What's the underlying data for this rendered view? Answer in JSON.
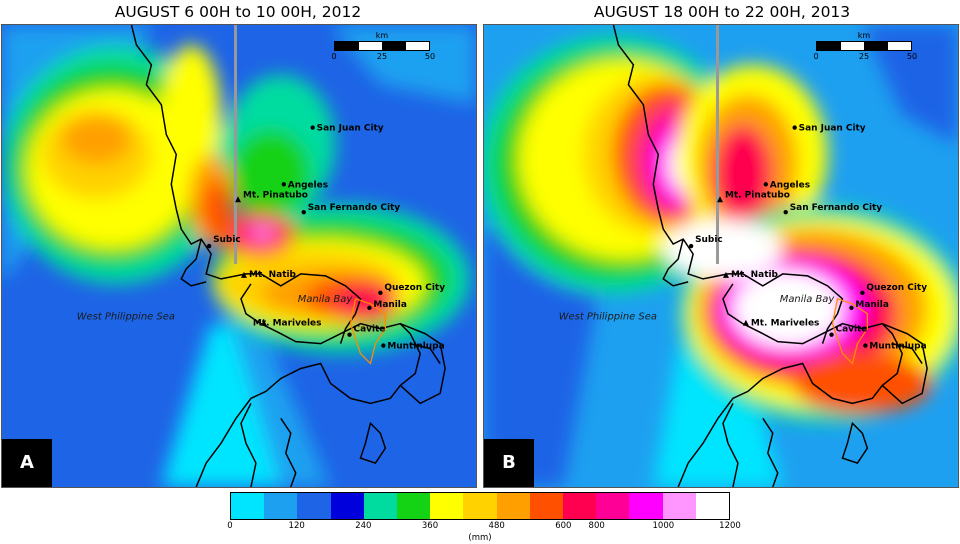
{
  "panels": [
    {
      "id": "A",
      "title": "AUGUST 6 00H to 10 00H, 2012",
      "label": "A",
      "places": [
        "San Juan City",
        "Angeles",
        "Mt. Pinatubo",
        "San Fernando City",
        "Subic",
        "Mt. Natib",
        "Quezon City",
        "Manila",
        "Mt. Mariveles",
        "Cavite",
        "Muntinlupa"
      ],
      "water": [
        "Manila Bay",
        "West Philippine Sea"
      ]
    },
    {
      "id": "B",
      "title": "AUGUST 18 00H to 22 00H, 2013",
      "label": "B",
      "places": [
        "San Juan City",
        "Angeles",
        "Mt. Pinatubo",
        "San Fernando City",
        "Subic",
        "Mt. Natib",
        "Quezon City",
        "Manila",
        "Mt. Mariveles",
        "Cavite",
        "Muntinlupa"
      ],
      "water": [
        "Manila Bay",
        "West Philippine Sea"
      ]
    }
  ],
  "scalebar": {
    "unit": "km",
    "ticks": [
      "0",
      "25",
      "50"
    ]
  },
  "colorbar": {
    "unit": "(mm)",
    "ticks": [
      "0",
      "120",
      "240",
      "360",
      "480",
      "600",
      "800",
      "1000",
      "1200"
    ],
    "colors": [
      "#00e5ff",
      "#1ea0f0",
      "#1e64e6",
      "#0000dc",
      "#00dca0",
      "#14d214",
      "#ffff00",
      "#ffd200",
      "#ffa000",
      "#ff5000",
      "#ff0050",
      "#ff0096",
      "#ff00ff",
      "#ff96ff",
      "#ffffff"
    ]
  }
}
